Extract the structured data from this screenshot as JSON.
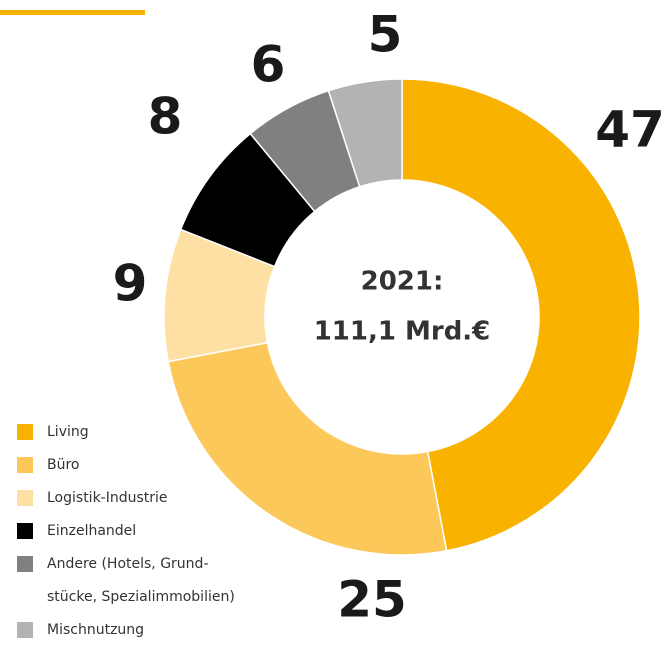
{
  "chart_data": {
    "type": "donut",
    "center_text": [
      "2021:",
      "111,1 Mrd.€"
    ],
    "categories": [
      "Living",
      "Büro",
      "Logistik-Industrie",
      "Einzelhandel",
      "Andere (Hotels, Grund-stücke, Spezialimmobilien)",
      "Mischnutzung"
    ],
    "values": [
      47,
      25,
      9,
      8,
      6,
      5
    ],
    "colors": [
      "#f9b200",
      "#fdc85a",
      "#fee0a5",
      "#000000",
      "#808080",
      "#b3b3b3"
    ]
  }
}
